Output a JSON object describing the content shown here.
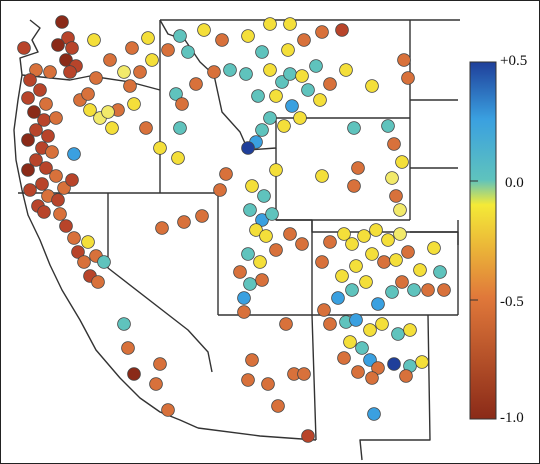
{
  "colorbar": {
    "ticks": [
      {
        "label": "+0.5",
        "value": 0.5
      },
      {
        "label": "0.0",
        "value": 0.0
      },
      {
        "label": "-0.5",
        "value": -0.5
      },
      {
        "label": "-1.0",
        "value": -1.0
      }
    ],
    "range": [
      -1.0,
      0.5
    ],
    "stops": [
      {
        "value": 0.5,
        "color": "#1f3f9a"
      },
      {
        "value": 0.25,
        "color": "#3aa0e0"
      },
      {
        "value": 0.0,
        "color": "#5fc3bd"
      },
      {
        "value": -0.1,
        "color": "#f4ea37"
      },
      {
        "value": -0.5,
        "color": "#e0783a"
      },
      {
        "value": -1.0,
        "color": "#8a2a18"
      }
    ]
  },
  "chart_data": {
    "type": "scatter",
    "title": "",
    "colorbar_range": [
      -1.0,
      0.5
    ],
    "point_count": "approx. 300 stations; color encodes value from -1.0 (dark red) to +0.5 (dark blue)"
  }
}
